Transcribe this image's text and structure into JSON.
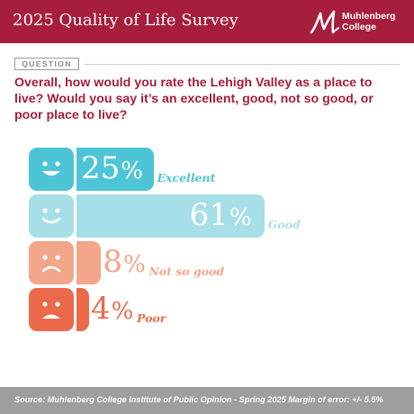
{
  "header": {
    "title": "2025 Quality of Life Survey",
    "logo_line1": "Muhlenberg",
    "logo_line2": "College",
    "color": "#a71d3c"
  },
  "question_tag": "QUESTION",
  "question": "Overall, how would you rate the Lehigh Valley as a place to live? Would you say it’s an excellent, good, not so good, or poor place to live?",
  "chart_data": {
    "type": "bar",
    "orientation": "horizontal",
    "categories": [
      "Excellent",
      "Good",
      "Not so good",
      "Poor"
    ],
    "values": [
      25,
      61,
      8,
      4
    ],
    "unit": "%",
    "colors": [
      "#4ec5d6",
      "#a7dfe8",
      "#f3a68a",
      "#ec6a4b"
    ],
    "icons": [
      "happy-face-icon",
      "smile-face-icon",
      "frown-face-icon",
      "sad-face-icon"
    ]
  },
  "footer": {
    "source": "Source: Muhlenberg College Institute of Public Opinion - Spring 2025 Margin of error: +/- 5.5%"
  }
}
